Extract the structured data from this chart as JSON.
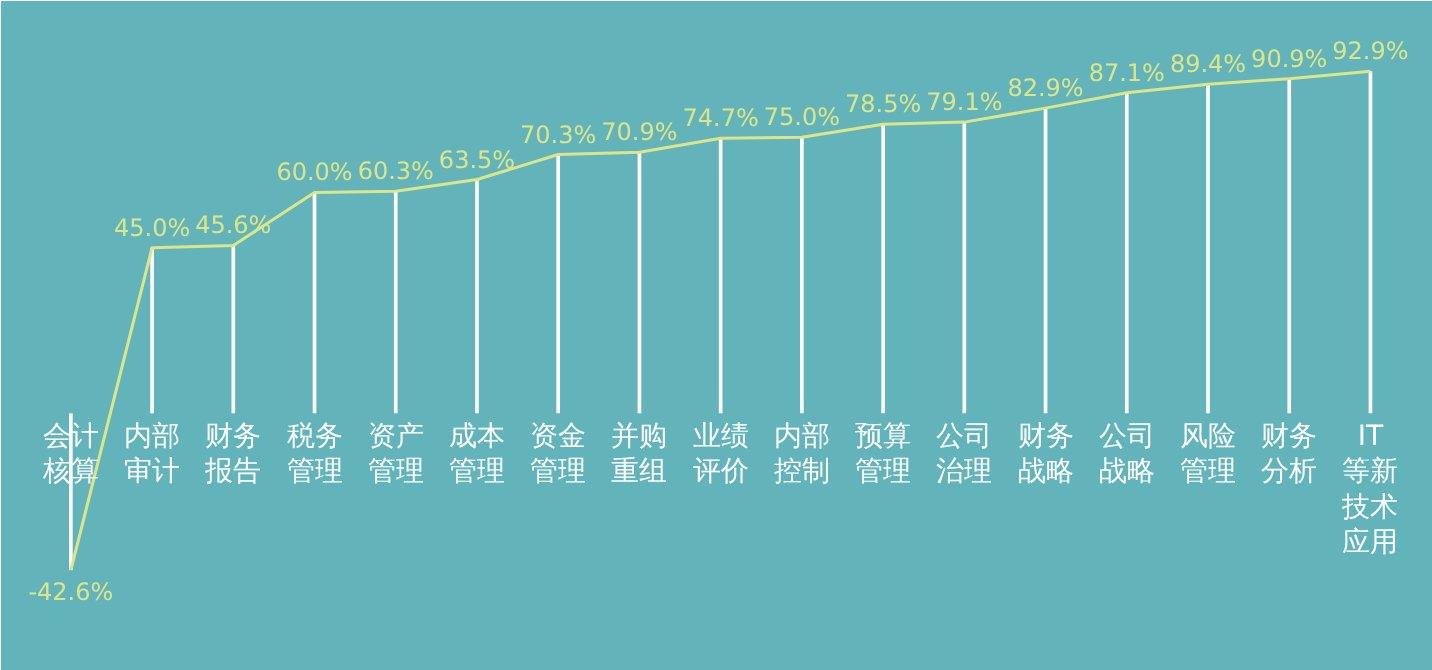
{
  "chart_data": {
    "type": "bar",
    "categories": [
      "会计核算",
      "内部审计",
      "财务报告",
      "税务管理",
      "资产管理",
      "成本管理",
      "资金管理",
      "并购重组",
      "业绩评价",
      "内部控制",
      "预算管理",
      "公司治理",
      "财务战略",
      "公司战略",
      "风险管理",
      "财务分析",
      "IT等新技术应用"
    ],
    "series": [
      {
        "color": "#ffffff",
        "values": [
          -42.6,
          45.0,
          45.6,
          60.0,
          60.3,
          63.5,
          70.3,
          70.9,
          74.7,
          75.0,
          78.5,
          79.1,
          82.9,
          87.1,
          89.4,
          90.9,
          92.9
        ]
      },
      {
        "type": "line",
        "color": "#dde58a",
        "values": [
          -42.6,
          45.0,
          45.6,
          60.0,
          60.3,
          63.5,
          70.3,
          70.9,
          74.7,
          75.0,
          78.5,
          79.1,
          82.9,
          87.1,
          89.4,
          90.9,
          92.9
        ],
        "value_labels": [
          "-42.6%",
          "45.0%",
          "45.6%",
          "60.0%",
          "60.3%",
          "63.5%",
          "70.3%",
          "70.9%",
          "74.7%",
          "75.0%",
          "78.5%",
          "79.1%",
          "82.9%",
          "87.1%",
          "89.4%",
          "90.9%",
          "92.9%"
        ]
      }
    ],
    "ylim": [
      -70,
      112
    ],
    "marker": "none",
    "grid": false
  }
}
